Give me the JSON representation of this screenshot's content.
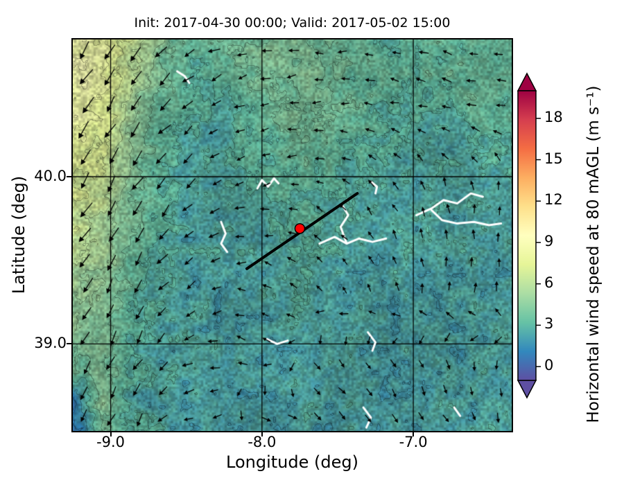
{
  "chart_data": {
    "type": "heatmap",
    "title": "Init: 2017-04-30 00:00; Valid: 2017-05-02 15:00",
    "xlabel": "Longitude (deg)",
    "ylabel": "Latitude (deg)",
    "grid": true,
    "extent": {
      "lon_min": -9.25,
      "lon_max": -6.35,
      "lat_min": 38.48,
      "lat_max": 40.82
    },
    "xticks": [
      {
        "lon": -9.0,
        "label": "-9.0"
      },
      {
        "lon": -8.0,
        "label": "-8.0"
      },
      {
        "lon": -7.0,
        "label": "-7.0"
      }
    ],
    "yticks": [
      {
        "lat": 40.0,
        "label": "40.0"
      },
      {
        "lat": 39.0,
        "label": "39.0"
      }
    ],
    "wind_speed_grid": {
      "units": "m s⁻¹",
      "order": "rows from north (lat 40.82) to south (lat 38.48); cols from west (lon -9.25) to east (lon -6.35)",
      "values": [
        [
          8.6,
          8.2,
          6.5,
          4.6,
          3.3,
          3.7,
          4.1,
          4.3,
          4.1,
          3.7,
          3.3,
          3.1,
          3.3,
          3.5,
          3.3,
          3.4
        ],
        [
          9.0,
          8.3,
          6.0,
          4.1,
          3.0,
          3.4,
          3.9,
          4.2,
          4.2,
          3.9,
          3.4,
          3.2,
          3.4,
          3.6,
          3.6,
          3.4
        ],
        [
          8.6,
          7.8,
          5.5,
          3.7,
          2.8,
          3.0,
          3.6,
          4.0,
          4.2,
          4.0,
          3.5,
          3.2,
          3.2,
          3.4,
          3.6,
          3.4
        ],
        [
          8.2,
          7.5,
          5.0,
          3.4,
          2.7,
          2.8,
          3.2,
          3.8,
          4.0,
          3.7,
          3.3,
          2.9,
          2.7,
          2.9,
          3.1,
          3.1
        ],
        [
          7.6,
          7.0,
          4.5,
          3.2,
          2.6,
          2.7,
          3.0,
          3.4,
          3.6,
          3.3,
          2.9,
          2.7,
          2.6,
          2.7,
          2.8,
          2.9
        ],
        [
          7.1,
          6.5,
          4.2,
          3.0,
          2.6,
          2.6,
          2.8,
          3.0,
          3.2,
          3.0,
          2.8,
          2.7,
          2.6,
          2.6,
          2.7,
          2.8
        ],
        [
          6.6,
          6.0,
          4.0,
          2.9,
          2.5,
          2.5,
          2.7,
          2.8,
          2.9,
          2.8,
          2.7,
          2.6,
          2.5,
          2.6,
          2.6,
          2.7
        ],
        [
          6.1,
          5.5,
          3.8,
          2.8,
          2.5,
          2.5,
          2.6,
          2.7,
          2.8,
          2.7,
          2.6,
          2.5,
          2.5,
          2.5,
          2.6,
          2.6
        ],
        [
          5.6,
          5.0,
          3.5,
          2.8,
          2.5,
          2.4,
          2.5,
          2.6,
          2.7,
          2.6,
          2.5,
          2.5,
          2.4,
          2.5,
          2.5,
          2.6
        ],
        [
          5.1,
          4.6,
          3.2,
          2.7,
          2.5,
          2.4,
          2.5,
          2.5,
          2.6,
          2.5,
          2.5,
          2.4,
          2.4,
          2.4,
          2.5,
          2.5
        ],
        [
          4.6,
          4.1,
          3.0,
          2.6,
          2.4,
          2.4,
          2.4,
          2.5,
          2.5,
          2.5,
          2.4,
          2.4,
          2.4,
          2.4,
          2.4,
          2.5
        ],
        [
          3.6,
          4.2,
          2.9,
          2.6,
          2.4,
          2.3,
          2.4,
          2.4,
          2.5,
          2.4,
          2.4,
          2.3,
          2.4,
          2.4,
          2.4,
          2.4
        ],
        [
          1.0,
          4.6,
          2.8,
          2.5,
          2.4,
          2.3,
          2.3,
          2.4,
          2.4,
          2.4,
          2.3,
          2.3,
          2.3,
          2.4,
          2.4,
          2.4
        ],
        [
          0.4,
          4.0,
          2.8,
          2.5,
          2.3,
          2.3,
          2.3,
          2.3,
          2.4,
          2.4,
          2.3,
          2.3,
          2.3,
          2.3,
          2.4,
          2.4
        ]
      ]
    },
    "wind_vectors": {
      "order": "rows north to south, cols west to east; angles in math convention (0=east, CCW)",
      "angles_deg_math": [
        [
          235,
          230,
          205,
          190,
          180,
          170,
          165,
          175
        ],
        [
          235,
          232,
          210,
          195,
          185,
          175,
          160,
          180
        ],
        [
          237,
          233,
          215,
          200,
          155,
          135,
          115,
          100
        ],
        [
          238,
          235,
          220,
          175,
          140,
          120,
          100,
          90
        ],
        [
          240,
          238,
          205,
          150,
          130,
          110,
          95,
          80
        ],
        [
          242,
          240,
          195,
          145,
          320,
          300,
          285,
          270
        ],
        [
          244,
          242,
          185,
          335,
          320,
          310,
          300,
          285
        ]
      ],
      "speeds_ms": [
        [
          8.5,
          7.5,
          4.5,
          3.0,
          3.0,
          3.0,
          3.0,
          3.0
        ],
        [
          8.5,
          7.5,
          4.2,
          3.0,
          2.6,
          3.0,
          3.0,
          3.0
        ],
        [
          8.0,
          7.2,
          4.0,
          3.0,
          2.6,
          2.6,
          3.0,
          3.0
        ],
        [
          8.0,
          7.0,
          3.6,
          2.6,
          2.6,
          2.6,
          3.0,
          3.0
        ],
        [
          7.0,
          6.2,
          3.2,
          2.6,
          2.6,
          2.6,
          3.0,
          3.0
        ],
        [
          6.2,
          5.5,
          3.0,
          2.6,
          2.6,
          2.6,
          3.0,
          3.0
        ],
        [
          5.5,
          5.2,
          3.0,
          3.0,
          3.0,
          3.0,
          3.0,
          3.0
        ]
      ]
    },
    "transect_line": {
      "from_lonlat": [
        -8.1,
        39.45
      ],
      "to_lonlat": [
        -7.37,
        39.9
      ],
      "color": "#000000"
    },
    "site_marker": {
      "lon": -7.75,
      "lat": 39.69,
      "color": "#ff0000",
      "edge_color": "#000000"
    },
    "water_features_lonlat": [
      [
        [
          -8.03,
          39.93
        ],
        [
          -8.0,
          39.98
        ],
        [
          -7.96,
          39.94
        ],
        [
          -7.92,
          39.99
        ],
        [
          -7.89,
          39.96
        ]
      ],
      [
        [
          -7.62,
          39.6
        ],
        [
          -7.52,
          39.64
        ],
        [
          -7.44,
          39.6
        ],
        [
          -7.36,
          39.63
        ],
        [
          -7.27,
          39.61
        ],
        [
          -7.18,
          39.63
        ]
      ],
      [
        [
          -7.44,
          39.6
        ],
        [
          -7.48,
          39.7
        ],
        [
          -7.43,
          39.77
        ],
        [
          -7.47,
          39.83
        ]
      ],
      [
        [
          -6.98,
          39.77
        ],
        [
          -6.88,
          39.81
        ],
        [
          -6.8,
          39.86
        ],
        [
          -6.71,
          39.84
        ],
        [
          -6.62,
          39.9
        ],
        [
          -6.54,
          39.88
        ]
      ],
      [
        [
          -6.88,
          39.8
        ],
        [
          -6.81,
          39.74
        ],
        [
          -6.71,
          39.72
        ],
        [
          -6.6,
          39.73
        ],
        [
          -6.5,
          39.71
        ],
        [
          -6.42,
          39.72
        ]
      ],
      [
        [
          -8.27,
          39.73
        ],
        [
          -8.24,
          39.66
        ],
        [
          -8.27,
          39.6
        ],
        [
          -8.23,
          39.55
        ]
      ],
      [
        [
          -7.97,
          39.03
        ],
        [
          -7.9,
          39.0
        ],
        [
          -7.83,
          39.02
        ]
      ],
      [
        [
          -7.3,
          39.07
        ],
        [
          -7.25,
          39.01
        ],
        [
          -7.27,
          38.96
        ]
      ],
      [
        [
          -7.33,
          38.62
        ],
        [
          -7.28,
          38.56
        ],
        [
          -7.31,
          38.5
        ]
      ],
      [
        [
          -6.73,
          38.62
        ],
        [
          -6.69,
          38.57
        ]
      ],
      [
        [
          -8.56,
          40.63
        ],
        [
          -8.51,
          40.6
        ],
        [
          -8.48,
          40.56
        ]
      ],
      [
        [
          -7.28,
          39.97
        ],
        [
          -7.24,
          39.94
        ],
        [
          -7.25,
          39.9
        ]
      ]
    ],
    "colorbar": {
      "label": "Horizontal wind speed at 80 mAGL (m s⁻¹)",
      "tick_labels": [
        "0",
        "3",
        "6",
        "9",
        "12",
        "15",
        "18"
      ],
      "tick_values": [
        0,
        3,
        6,
        9,
        12,
        15,
        18
      ],
      "vmin": -1,
      "vmax": 20,
      "extend": "both",
      "under_color": "#5e4fa2",
      "over_color": "#9e0142",
      "cmap_stops": [
        {
          "pos": 0.0,
          "color": "#5e4fa2"
        },
        {
          "pos": 0.1,
          "color": "#3288bd"
        },
        {
          "pos": 0.2,
          "color": "#66c2a5"
        },
        {
          "pos": 0.3,
          "color": "#abdda4"
        },
        {
          "pos": 0.4,
          "color": "#e6f598"
        },
        {
          "pos": 0.5,
          "color": "#ffffbf"
        },
        {
          "pos": 0.6,
          "color": "#fee08b"
        },
        {
          "pos": 0.7,
          "color": "#fdae61"
        },
        {
          "pos": 0.8,
          "color": "#f46d43"
        },
        {
          "pos": 0.9,
          "color": "#d53e4f"
        },
        {
          "pos": 1.0,
          "color": "#9e0142"
        }
      ]
    }
  }
}
